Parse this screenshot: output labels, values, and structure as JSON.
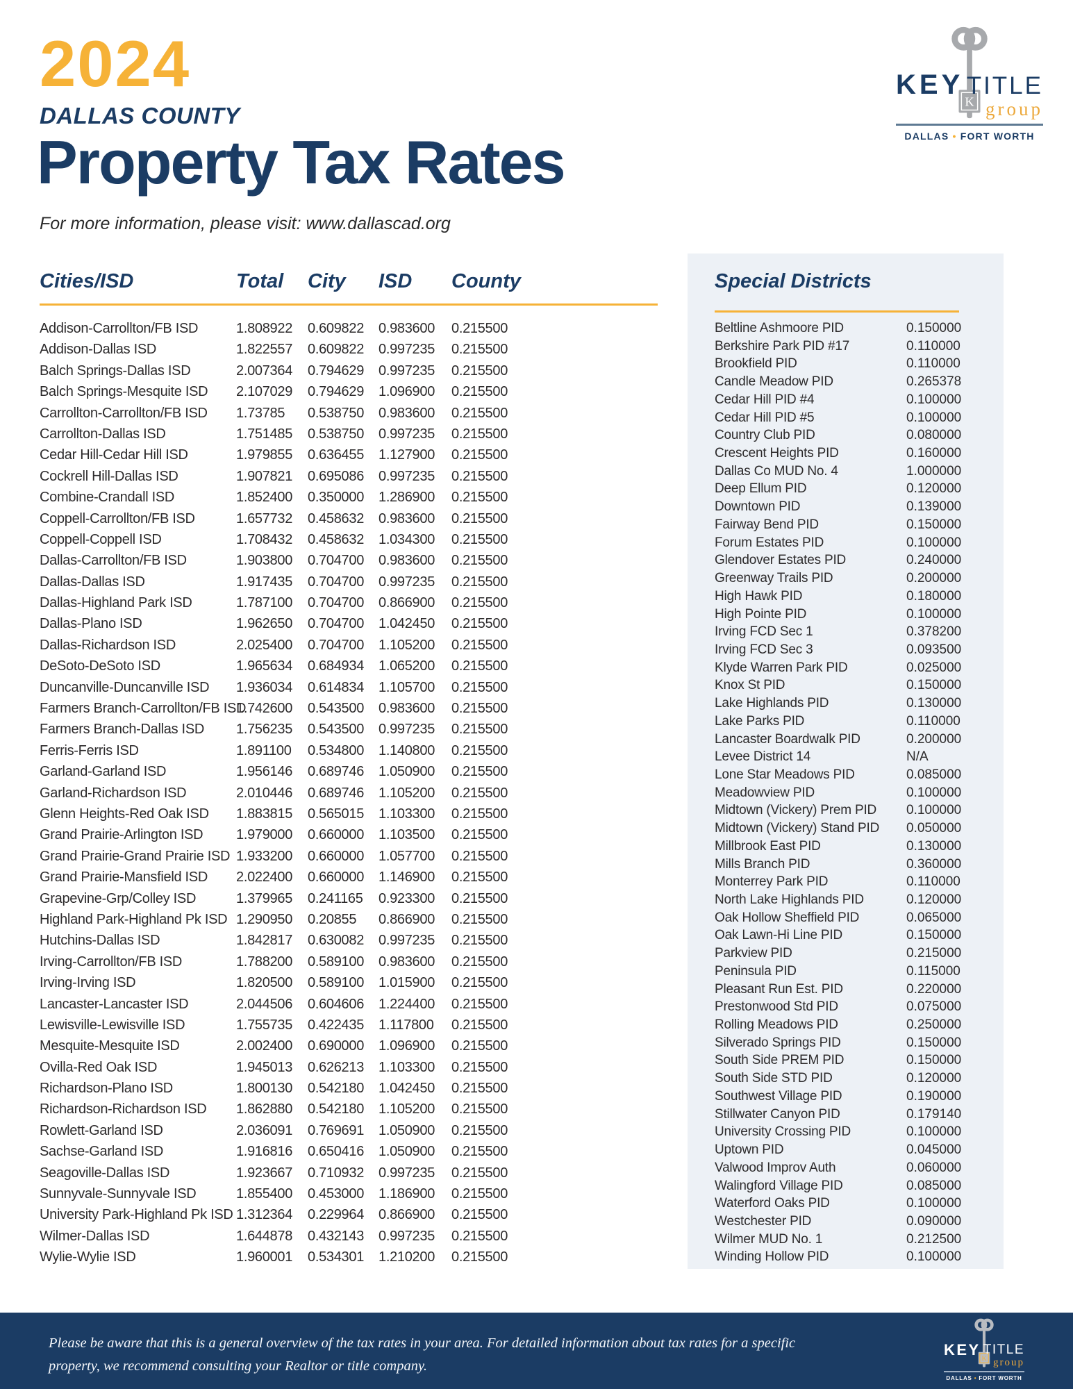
{
  "header": {
    "year": "2024",
    "county": "DALLAS COUNTY",
    "title": "Property Tax Rates",
    "subtitle": "For more information, please visit: www.dallascad.org"
  },
  "logo": {
    "key": "KEY",
    "title": "TITLE",
    "group": "group",
    "k_letter": "K",
    "city1": "DALLAS",
    "separator": "•",
    "city2": "FORT WORTH"
  },
  "colors": {
    "navy": "#1b3c64",
    "gold": "#f6b237",
    "panel_bg": "#edf1f6",
    "key_gray": "#a7a9ac",
    "body_text": "#2d2b2c"
  },
  "cities_table": {
    "headers": [
      "Cities/ISD",
      "Total",
      "City",
      "ISD",
      "County"
    ],
    "rows": [
      [
        "Addison-Carrollton/FB ISD",
        "1.808922",
        "0.609822",
        "0.983600",
        "0.215500"
      ],
      [
        "Addison-Dallas ISD",
        "1.822557",
        "0.609822",
        "0.997235",
        "0.215500"
      ],
      [
        "Balch Springs-Dallas ISD",
        "2.007364",
        "0.794629",
        "0.997235",
        "0.215500"
      ],
      [
        "Balch Springs-Mesquite ISD",
        "2.107029",
        "0.794629",
        "1.096900",
        "0.215500"
      ],
      [
        "Carrollton-Carrollton/FB ISD",
        "1.73785",
        "0.538750",
        "0.983600",
        "0.215500"
      ],
      [
        "Carrollton-Dallas ISD",
        "1.751485",
        "0.538750",
        "0.997235",
        "0.215500"
      ],
      [
        "Cedar Hill-Cedar Hill ISD",
        "1.979855",
        "0.636455",
        "1.127900",
        "0.215500"
      ],
      [
        "Cockrell Hill-Dallas ISD",
        "1.907821",
        "0.695086",
        "0.997235",
        "0.215500"
      ],
      [
        "Combine-Crandall ISD",
        "1.852400",
        "0.350000",
        "1.286900",
        "0.215500"
      ],
      [
        "Coppell-Carrollton/FB ISD",
        "1.657732",
        "0.458632",
        "0.983600",
        "0.215500"
      ],
      [
        "Coppell-Coppell ISD",
        "1.708432",
        "0.458632",
        "1.034300",
        "0.215500"
      ],
      [
        "Dallas-Carrollton/FB ISD",
        "1.903800",
        "0.704700",
        "0.983600",
        "0.215500"
      ],
      [
        "Dallas-Dallas ISD",
        "1.917435",
        "0.704700",
        "0.997235",
        "0.215500"
      ],
      [
        "Dallas-Highland Park ISD",
        "1.787100",
        "0.704700",
        "0.866900",
        "0.215500"
      ],
      [
        "Dallas-Plano ISD",
        "1.962650",
        "0.704700",
        "1.042450",
        "0.215500"
      ],
      [
        "Dallas-Richardson ISD",
        "2.025400",
        "0.704700",
        "1.105200",
        "0.215500"
      ],
      [
        "DeSoto-DeSoto ISD",
        "1.965634",
        "0.684934",
        "1.065200",
        "0.215500"
      ],
      [
        "Duncanville-Duncanville ISD",
        "1.936034",
        "0.614834",
        "1.105700",
        "0.215500"
      ],
      [
        "Farmers Branch-Carrollton/FB ISD",
        "1.742600",
        "0.543500",
        "0.983600",
        "0.215500"
      ],
      [
        "Farmers Branch-Dallas ISD",
        "1.756235",
        "0.543500",
        "0.997235",
        "0.215500"
      ],
      [
        "Ferris-Ferris ISD",
        "1.891100",
        "0.534800",
        "1.140800",
        "0.215500"
      ],
      [
        "Garland-Garland ISD",
        "1.956146",
        "0.689746",
        "1.050900",
        "0.215500"
      ],
      [
        "Garland-Richardson ISD",
        "2.010446",
        "0.689746",
        "1.105200",
        "0.215500"
      ],
      [
        "Glenn Heights-Red Oak ISD",
        "1.883815",
        "0.565015",
        "1.103300",
        "0.215500"
      ],
      [
        "Grand Prairie-Arlington ISD",
        "1.979000",
        "0.660000",
        "1.103500",
        "0.215500"
      ],
      [
        "Grand Prairie-Grand Prairie ISD",
        "1.933200",
        "0.660000",
        "1.057700",
        "0.215500"
      ],
      [
        "Grand Prairie-Mansfield ISD",
        "2.022400",
        "0.660000",
        "1.146900",
        "0.215500"
      ],
      [
        "Grapevine-Grp/Colley ISD",
        "1.379965",
        "0.241165",
        "0.923300",
        "0.215500"
      ],
      [
        "Highland Park-Highland Pk ISD",
        "1.290950",
        "0.20855",
        "0.866900",
        "0.215500"
      ],
      [
        "Hutchins-Dallas ISD",
        "1.842817",
        "0.630082",
        "0.997235",
        "0.215500"
      ],
      [
        "Irving-Carrollton/FB ISD",
        "1.788200",
        "0.589100",
        "0.983600",
        "0.215500"
      ],
      [
        "Irving-Irving ISD",
        "1.820500",
        "0.589100",
        "1.015900",
        "0.215500"
      ],
      [
        "Lancaster-Lancaster ISD",
        "2.044506",
        "0.604606",
        "1.224400",
        "0.215500"
      ],
      [
        "Lewisville-Lewisville ISD",
        "1.755735",
        "0.422435",
        "1.117800",
        "0.215500"
      ],
      [
        "Mesquite-Mesquite ISD",
        "2.002400",
        "0.690000",
        "1.096900",
        "0.215500"
      ],
      [
        "Ovilla-Red Oak ISD",
        "1.945013",
        "0.626213",
        "1.103300",
        "0.215500"
      ],
      [
        "Richardson-Plano ISD",
        "1.800130",
        "0.542180",
        "1.042450",
        "0.215500"
      ],
      [
        "Richardson-Richardson ISD",
        "1.862880",
        "0.542180",
        "1.105200",
        "0.215500"
      ],
      [
        "Rowlett-Garland ISD",
        "2.036091",
        "0.769691",
        "1.050900",
        "0.215500"
      ],
      [
        "Sachse-Garland ISD",
        "1.916816",
        "0.650416",
        "1.050900",
        "0.215500"
      ],
      [
        "Seagoville-Dallas ISD",
        "1.923667",
        "0.710932",
        "0.997235",
        "0.215500"
      ],
      [
        "Sunnyvale-Sunnyvale ISD",
        "1.855400",
        "0.453000",
        "1.186900",
        "0.215500"
      ],
      [
        "University Park-Highland Pk ISD",
        "1.312364",
        "0.229964",
        "0.866900",
        "0.215500"
      ],
      [
        "Wilmer-Dallas ISD",
        "1.644878",
        "0.432143",
        "0.997235",
        "0.215500"
      ],
      [
        "Wylie-Wylie ISD",
        "1.960001",
        "0.534301",
        "1.210200",
        "0.215500"
      ]
    ]
  },
  "special_districts": {
    "title": "Special Districts",
    "items": [
      [
        "Beltline Ashmoore PID",
        "0.150000"
      ],
      [
        "Berkshire Park PID #17",
        "0.110000"
      ],
      [
        "Brookfield PID",
        "0.110000"
      ],
      [
        "Candle Meadow PID",
        "0.265378"
      ],
      [
        "Cedar Hill PID #4",
        "0.100000"
      ],
      [
        "Cedar Hill PID #5",
        "0.100000"
      ],
      [
        "Country Club PID",
        "0.080000"
      ],
      [
        "Crescent Heights PID",
        "0.160000"
      ],
      [
        "Dallas Co MUD No. 4",
        "1.000000"
      ],
      [
        "Deep Ellum PID",
        "0.120000"
      ],
      [
        "Downtown PID",
        "0.139000"
      ],
      [
        "Fairway Bend PID",
        "0.150000"
      ],
      [
        "Forum Estates PID",
        "0.100000"
      ],
      [
        "Glendover Estates PID",
        "0.240000"
      ],
      [
        "Greenway Trails PID",
        "0.200000"
      ],
      [
        "High Hawk PID",
        "0.180000"
      ],
      [
        "High Pointe PID",
        "0.100000"
      ],
      [
        "Irving FCD Sec 1",
        "0.378200"
      ],
      [
        "Irving FCD Sec 3",
        "0.093500"
      ],
      [
        "Klyde Warren Park PID",
        "0.025000"
      ],
      [
        "Knox St PID",
        "0.150000"
      ],
      [
        "Lake Highlands PID",
        "0.130000"
      ],
      [
        "Lake Parks PID",
        "0.110000"
      ],
      [
        "Lancaster Boardwalk PID",
        "0.200000"
      ],
      [
        "Levee District 14",
        "N/A"
      ],
      [
        "Lone Star Meadows PID",
        "0.085000"
      ],
      [
        "Meadowview PID",
        "0.100000"
      ],
      [
        "Midtown (Vickery) Prem PID",
        "0.100000"
      ],
      [
        "Midtown (Vickery) Stand PID",
        "0.050000"
      ],
      [
        "Millbrook East PID",
        "0.130000"
      ],
      [
        "Mills Branch PID",
        "0.360000"
      ],
      [
        "Monterrey Park PID",
        "0.110000"
      ],
      [
        "North Lake Highlands PID",
        "0.120000"
      ],
      [
        "Oak Hollow Sheffield PID",
        "0.065000"
      ],
      [
        "Oak Lawn-Hi Line PID",
        "0.150000"
      ],
      [
        "Parkview PID",
        "0.215000"
      ],
      [
        "Peninsula PID",
        "0.115000"
      ],
      [
        "Pleasant Run Est. PID",
        "0.220000"
      ],
      [
        "Prestonwood Std PID",
        "0.075000"
      ],
      [
        "Rolling Meadows PID",
        "0.250000"
      ],
      [
        "Silverado Springs PID",
        "0.150000"
      ],
      [
        "South Side PREM PID",
        "0.150000"
      ],
      [
        "South Side STD PID",
        "0.120000"
      ],
      [
        "Southwest Village PID",
        "0.190000"
      ],
      [
        "Stillwater Canyon PID",
        "0.179140"
      ],
      [
        "University Crossing PID",
        "0.100000"
      ],
      [
        "Uptown PID",
        "0.045000"
      ],
      [
        "Valwood Improv Auth",
        "0.060000"
      ],
      [
        "Walingford Village PID",
        "0.085000"
      ],
      [
        "Waterford Oaks PID",
        "0.100000"
      ],
      [
        "Westchester PID",
        "0.090000"
      ],
      [
        "Wilmer MUD No. 1",
        "0.212500"
      ],
      [
        "Winding Hollow PID",
        "0.100000"
      ]
    ]
  },
  "footer": {
    "text": "Please be aware that this is a general overview of the tax rates in your area. For detailed information about tax rates for a specific property, we recommend consulting your Realtor or title company."
  }
}
